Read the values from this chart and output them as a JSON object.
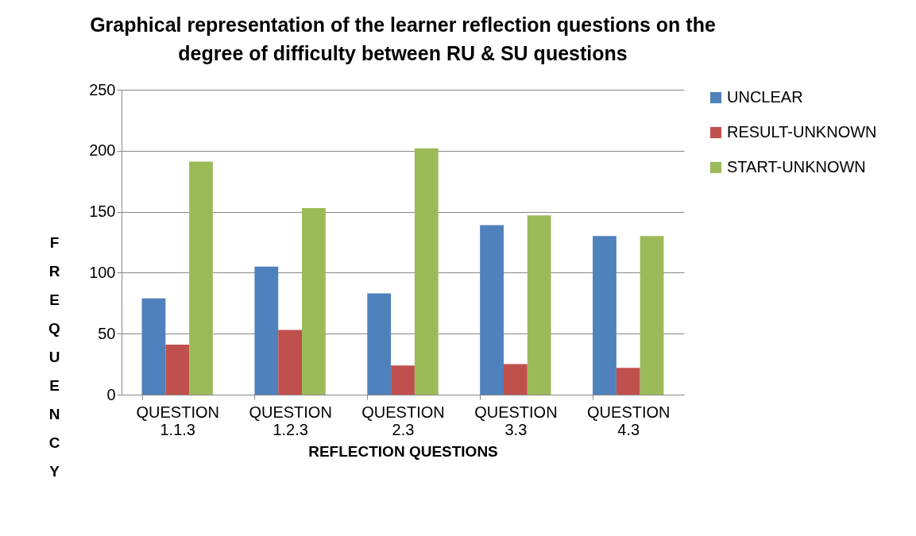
{
  "chart_data": {
    "type": "bar",
    "title": "Graphical representation of the learner reflection questions on the degree of difficulty between RU & SU questions",
    "xlabel": "REFLECTION QUESTIONS",
    "ylabel": "FREQUENCY",
    "categories": [
      "QUESTION 1.1.3",
      "QUESTION 1.2.3",
      "QUESTION 2.3",
      "QUESTION 3.3",
      "QUESTION 4.3"
    ],
    "series": [
      {
        "name": "UNCLEAR",
        "color": "#4f81bd",
        "values": [
          79,
          105,
          83,
          139,
          130
        ]
      },
      {
        "name": "RESULT-UNKNOWN",
        "color": "#c0504d",
        "values": [
          41,
          53,
          24,
          25,
          22
        ]
      },
      {
        "name": "START-UNKNOWN",
        "color": "#9bbb59",
        "values": [
          191,
          153,
          202,
          147,
          130
        ]
      }
    ],
    "ylim": [
      0,
      250
    ],
    "yticks": [
      0,
      50,
      100,
      150,
      200,
      250
    ],
    "grid": "y",
    "legend": "right"
  }
}
